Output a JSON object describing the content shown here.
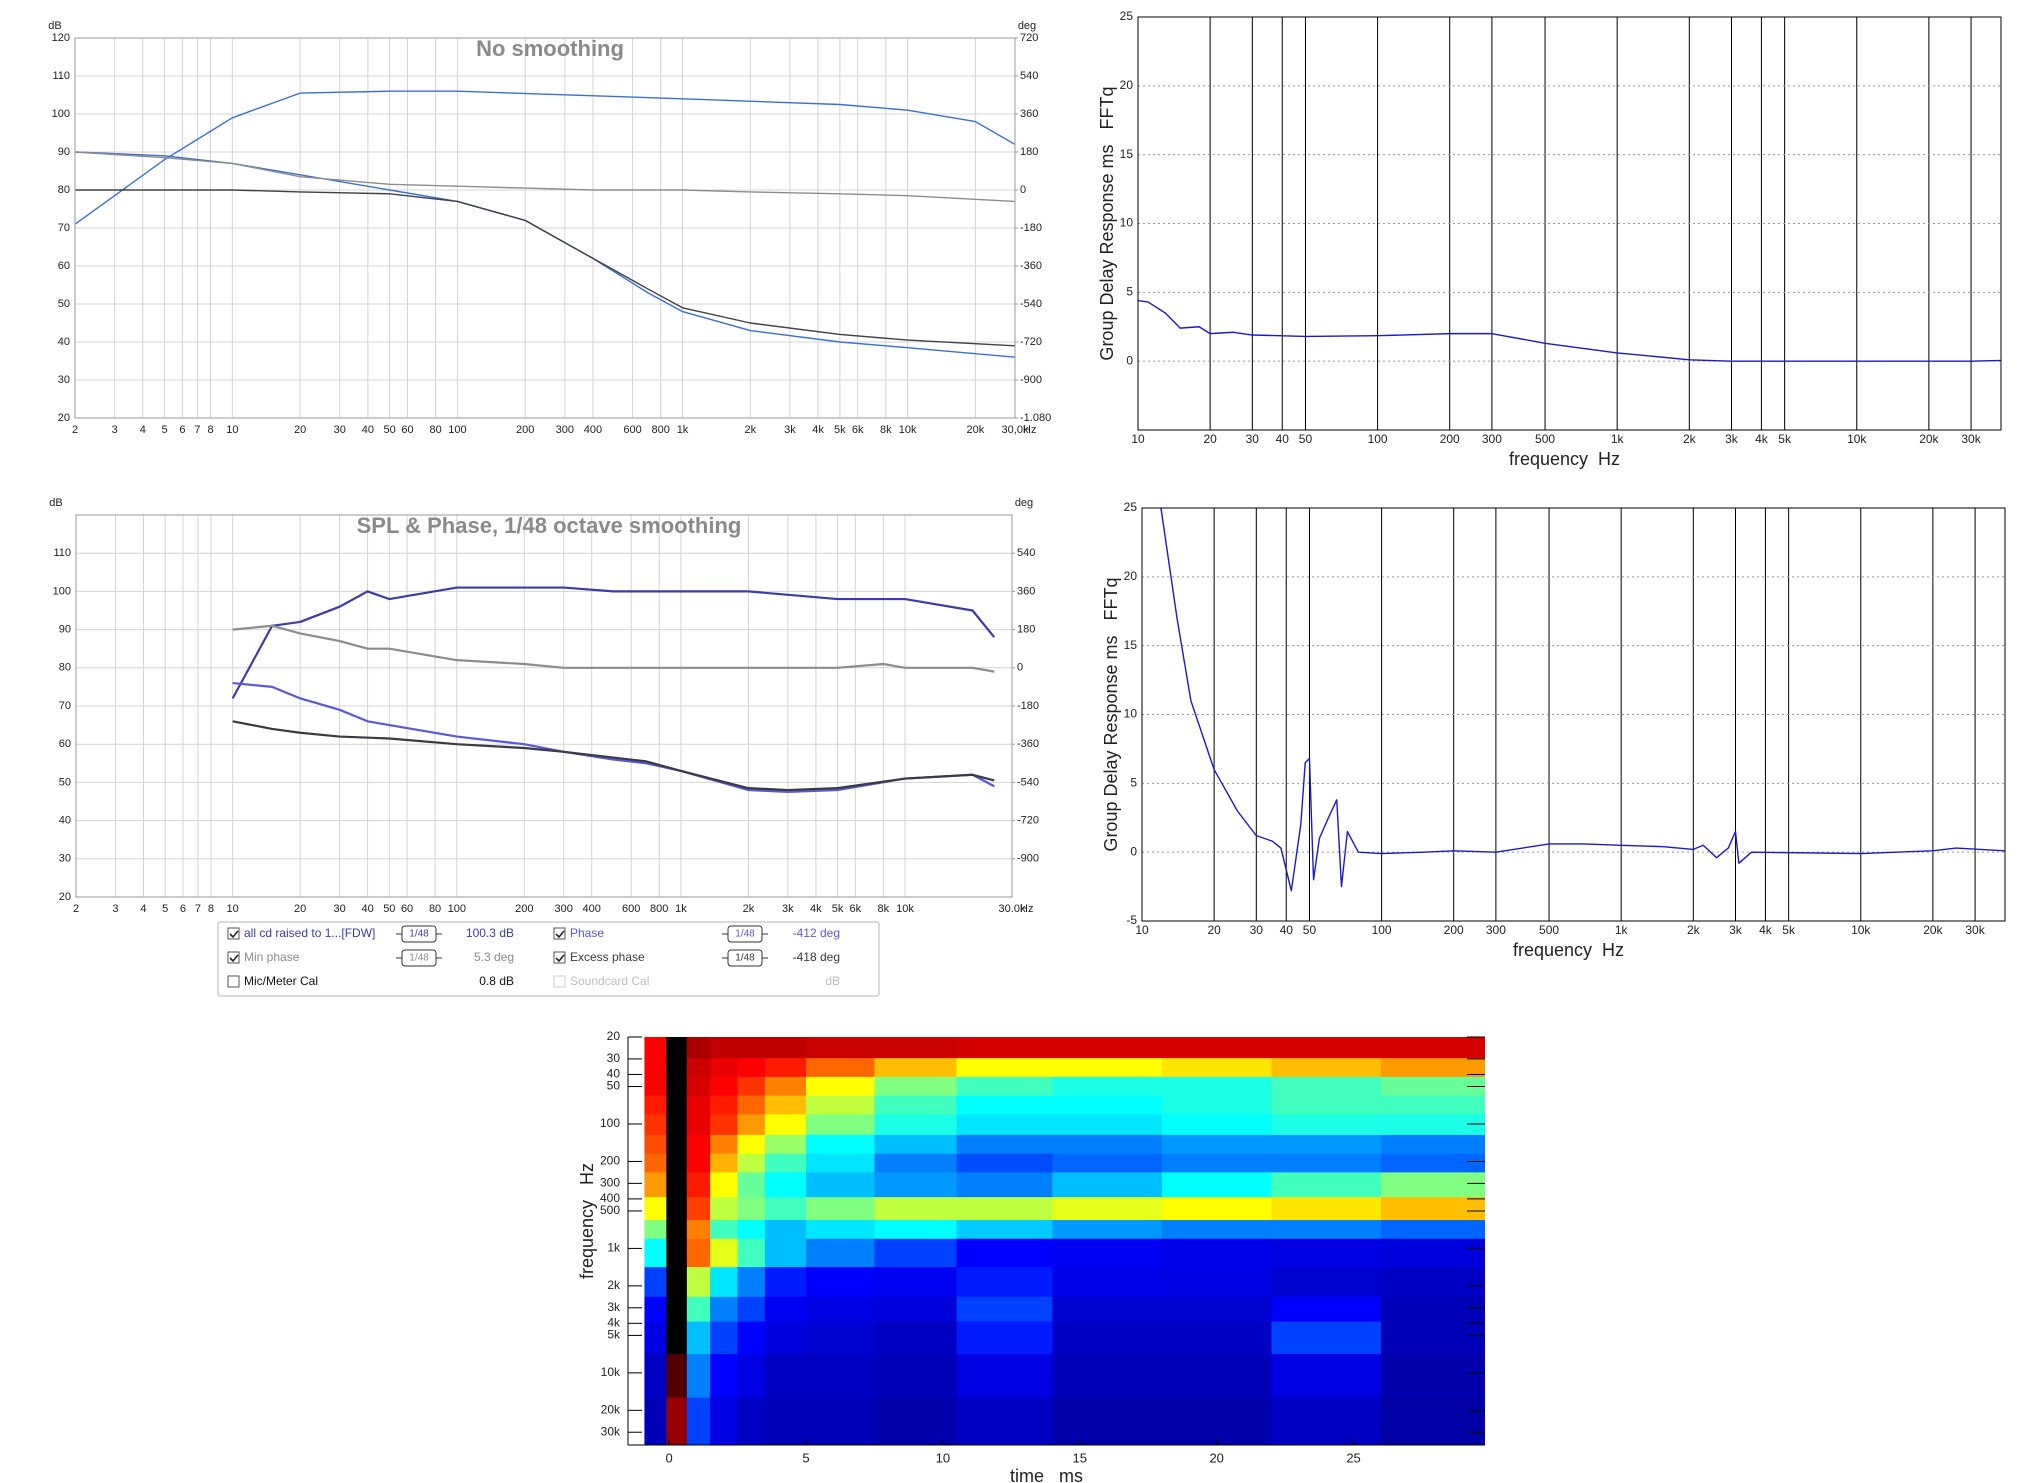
{
  "chart_data": [
    {
      "type": "line",
      "title": "No smoothing",
      "ylabel": "dB",
      "y2label": "deg",
      "x_unit": "Hz",
      "xscale": "log",
      "xlim": [
        2,
        30000
      ],
      "xticks": [
        2,
        3,
        4,
        5,
        6,
        7,
        8,
        10,
        20,
        30,
        40,
        50,
        60,
        80,
        100,
        200,
        300,
        400,
        600,
        800,
        {
          "value": 1000,
          "label": "1k"
        },
        {
          "value": 2000,
          "label": "2k"
        },
        {
          "value": 3000,
          "label": "3k"
        },
        {
          "value": 4000,
          "label": "4k"
        },
        {
          "value": 5000,
          "label": "5k"
        },
        {
          "value": 6000,
          "label": "6k"
        },
        {
          "value": 8000,
          "label": "8k"
        },
        {
          "value": 10000,
          "label": "10k"
        },
        {
          "value": 20000,
          "label": "20k"
        },
        {
          "value": 30000,
          "label": "30,0k"
        }
      ],
      "ylim": [
        20,
        120
      ],
      "yticks": [
        20,
        30,
        40,
        50,
        60,
        70,
        80,
        90,
        100,
        110,
        120
      ],
      "y2lim": [
        -1080,
        720
      ],
      "y2ticks": [
        720,
        540,
        360,
        180,
        0,
        -180,
        -360,
        -540,
        -720,
        -900,
        {
          "value": -1080,
          "label": "-1.080"
        }
      ],
      "grid": true,
      "grid_color": "#d4d4d4",
      "ygrid_color": "#d4d4d4",
      "ygrid_dotted": false,
      "series": [
        {
          "color": "#3a6fd8",
          "x": [
            2,
            5,
            10,
            20,
            50,
            100,
            1000,
            5000,
            10000,
            20000,
            30000
          ],
          "values": [
            71,
            88,
            99,
            105.5,
            106,
            106,
            104,
            102.5,
            101,
            98,
            92
          ]
        },
        {
          "color": "#3a6fd8",
          "axis": "y2",
          "x": [
            2,
            5,
            10,
            20,
            50,
            100,
            200,
            400,
            700,
            1000,
            2000,
            5000,
            10000,
            30000
          ],
          "values": [
            180,
            162,
            126,
            72,
            0,
            -54,
            -144,
            -324,
            -486,
            -576,
            -666,
            -720,
            -747,
            -792
          ]
        },
        {
          "color": "#404048",
          "axis": "y2",
          "x": [
            2,
            5,
            10,
            20,
            50,
            100,
            200,
            400,
            700,
            1000,
            2000,
            5000,
            10000,
            30000
          ],
          "values": [
            0,
            0,
            0,
            -9,
            -18,
            -54,
            -144,
            -324,
            -468,
            -558,
            -630,
            -684,
            -711,
            -738
          ]
        },
        {
          "color": "#8c8c8c",
          "axis": "y2",
          "x": [
            2,
            5,
            10,
            20,
            50,
            100,
            200,
            400,
            700,
            1000,
            2000,
            5000,
            10000,
            30000
          ],
          "values": [
            180,
            153,
            126,
            63,
            27,
            18,
            9,
            0,
            0,
            0,
            -9,
            -18,
            -27,
            -54
          ]
        }
      ]
    },
    {
      "type": "line",
      "title": "SPL & Phase, 1/48 octave smoothing",
      "ylabel": "dB",
      "y2label": "deg",
      "x_unit": "Hz",
      "xscale": "log",
      "xlim": [
        2,
        30000
      ],
      "xticks": [
        2,
        3,
        4,
        5,
        6,
        7,
        8,
        10,
        20,
        30,
        40,
        50,
        60,
        80,
        100,
        200,
        300,
        400,
        600,
        800,
        {
          "value": 1000,
          "label": "1k"
        },
        {
          "value": 2000,
          "label": "2k"
        },
        {
          "value": 3000,
          "label": "3k"
        },
        {
          "value": 4000,
          "label": "4k"
        },
        {
          "value": 5000,
          "label": "5k"
        },
        {
          "value": 6000,
          "label": "6k"
        },
        {
          "value": 8000,
          "label": "8k"
        },
        {
          "value": 10000,
          "label": "10k"
        },
        {
          "value": 30000,
          "label": "30.0k"
        }
      ],
      "ylim": [
        20,
        120
      ],
      "yticks": [
        20,
        30,
        40,
        50,
        60,
        70,
        80,
        90,
        100,
        110
      ],
      "y2lim": [
        -1080,
        720
      ],
      "y2ticks": [
        540,
        360,
        180,
        0,
        -180,
        -360,
        -540,
        -720,
        -900
      ],
      "grid": true,
      "grid_color": "#d4d4d4",
      "ygrid_color": "#d4d4d4",
      "ygrid_dotted": false,
      "series": [
        {
          "name": "all cd raised to 1...[FDW]",
          "color": "#3c3ca8",
          "smoothing": "1/48",
          "readout": "100.3 dB",
          "checked": true,
          "x": [
            10,
            15,
            20,
            30,
            40,
            50,
            100,
            200,
            300,
            500,
            1000,
            2000,
            5000,
            10000,
            20000,
            25000
          ],
          "values": [
            72,
            91,
            92,
            96,
            100,
            98,
            101,
            101,
            101,
            100,
            100,
            100,
            98,
            98,
            95,
            88
          ]
        },
        {
          "name": "Phase",
          "color": "#5858dc",
          "axis": "y2",
          "smoothing": "1/48",
          "readout": "-412 deg",
          "checked": true,
          "x": [
            10,
            15,
            20,
            30,
            40,
            50,
            100,
            200,
            300,
            500,
            700,
            1000,
            2000,
            3000,
            5000,
            10000,
            20000,
            25000
          ],
          "values": [
            -72,
            -90,
            -144,
            -198,
            -252,
            -270,
            -324,
            -360,
            -396,
            -432,
            -450,
            -486,
            -576,
            -585,
            -576,
            -522,
            -504,
            -558
          ]
        },
        {
          "name": "Min phase",
          "color": "#8c8c8c",
          "axis": "y2",
          "smoothing": "1/48",
          "readout": "5.3 deg",
          "checked": true,
          "x": [
            10,
            15,
            20,
            30,
            40,
            50,
            100,
            200,
            300,
            500,
            1000,
            2000,
            5000,
            8000,
            10000,
            20000,
            25000
          ],
          "values": [
            180,
            198,
            162,
            126,
            90,
            90,
            36,
            18,
            0,
            0,
            0,
            0,
            0,
            18,
            0,
            0,
            -18
          ]
        },
        {
          "name": "Excess phase",
          "color": "#3a3a42",
          "axis": "y2",
          "smoothing": "1/48",
          "readout": "-418 deg",
          "checked": true,
          "x": [
            10,
            15,
            20,
            30,
            50,
            100,
            200,
            300,
            500,
            700,
            1000,
            2000,
            3000,
            5000,
            10000,
            20000,
            25000
          ],
          "values": [
            -252,
            -288,
            -306,
            -324,
            -333,
            -360,
            -378,
            -396,
            -423,
            -441,
            -486,
            -567,
            -576,
            -567,
            -522,
            -504,
            -531
          ]
        }
      ],
      "legend_extra": [
        {
          "name": "Mic/Meter Cal",
          "readout": "0.8 dB",
          "checked": false,
          "disabled": false
        },
        {
          "name": "Soundcard Cal",
          "readout": "dB",
          "checked": false,
          "disabled": true
        }
      ]
    },
    {
      "type": "line",
      "ylabel": "Group Delay Response ms   FFTq",
      "xlabel": "frequency  Hz",
      "xscale": "log",
      "xlim": [
        10,
        40000
      ],
      "xticks": [
        10,
        20,
        30,
        40,
        50,
        100,
        200,
        300,
        500,
        {
          "value": 1000,
          "label": "1k"
        },
        {
          "value": 2000,
          "label": "2k"
        },
        {
          "value": 3000,
          "label": "3k"
        },
        {
          "value": 4000,
          "label": "4k"
        },
        {
          "value": 5000,
          "label": "5k"
        },
        {
          "value": 10000,
          "label": "10k"
        },
        {
          "value": 20000,
          "label": "20k"
        },
        {
          "value": 30000,
          "label": "30k"
        }
      ],
      "ylim": [
        -5,
        25
      ],
      "yticks": [
        0,
        5,
        10,
        15,
        20,
        25
      ],
      "grid": true,
      "grid_color": "#000000",
      "ygrid_color": "#999999",
      "ygrid_dotted": true,
      "series": [
        {
          "color": "#1a1acc",
          "x": [
            10,
            11,
            13,
            15,
            18,
            20,
            25,
            30,
            50,
            100,
            200,
            300,
            500,
            1000,
            2000,
            3000,
            10000,
            30000,
            40000
          ],
          "values": [
            4.4,
            4.3,
            3.5,
            2.4,
            2.5,
            2.0,
            2.1,
            1.9,
            1.8,
            1.85,
            2.0,
            2.0,
            1.3,
            0.6,
            0.1,
            0.0,
            0.0,
            0.0,
            0.05
          ]
        }
      ]
    },
    {
      "type": "line",
      "ylabel": "Group Delay Response ms   FFTq",
      "xlabel": "frequency  Hz",
      "xscale": "log",
      "xlim": [
        10,
        40000
      ],
      "xticks": [
        10,
        20,
        30,
        40,
        50,
        100,
        200,
        300,
        500,
        {
          "value": 1000,
          "label": "1k"
        },
        {
          "value": 2000,
          "label": "2k"
        },
        {
          "value": 3000,
          "label": "3k"
        },
        {
          "value": 4000,
          "label": "4k"
        },
        {
          "value": 5000,
          "label": "5k"
        },
        {
          "value": 10000,
          "label": "10k"
        },
        {
          "value": 20000,
          "label": "20k"
        },
        {
          "value": 30000,
          "label": "30k"
        }
      ],
      "ylim": [
        -5,
        25
      ],
      "yticks": [
        -5,
        0,
        5,
        10,
        15,
        20,
        25
      ],
      "grid": true,
      "grid_color": "#000000",
      "ygrid_color": "#999999",
      "ygrid_dotted": true,
      "series": [
        {
          "color": "#1a1acc",
          "x": [
            12,
            14,
            16,
            20,
            25,
            30,
            35,
            38,
            42,
            46,
            48,
            50,
            52,
            55,
            60,
            65,
            68,
            72,
            80,
            100,
            150,
            200,
            300,
            500,
            700,
            1000,
            1500,
            2000,
            2200,
            2500,
            2800,
            3000,
            3100,
            3500,
            10000,
            20000,
            25000,
            40000
          ],
          "values": [
            25,
            17,
            11,
            6,
            3,
            1.2,
            0.8,
            0.3,
            -2.8,
            2,
            6.5,
            6.8,
            -2,
            1,
            2.5,
            3.8,
            -2.5,
            1.5,
            0,
            -0.1,
            0,
            0.1,
            0,
            0.6,
            0.6,
            0.5,
            0.4,
            0.2,
            0.5,
            -0.4,
            0.3,
            1.5,
            -0.8,
            0,
            -0.1,
            0.1,
            0.3,
            0.1
          ]
        }
      ]
    },
    {
      "type": "heatmap",
      "xlabel": "time   ms",
      "ylabel": "frequency   Hz",
      "yscale": "log",
      "xlim": [
        -1.5,
        29.8
      ],
      "xticks": [
        0,
        5,
        10,
        15,
        20,
        25
      ],
      "ylim": [
        38000,
        20
      ],
      "yticks": [
        20,
        30,
        40,
        50,
        100,
        200,
        300,
        400,
        500,
        {
          "value": 1000,
          "label": "1k"
        },
        {
          "value": 2000,
          "label": "2k"
        },
        {
          "value": 3000,
          "label": "3k"
        },
        {
          "value": 4000,
          "label": "4k"
        },
        {
          "value": 5000,
          "label": "5k"
        },
        {
          "value": 10000,
          "label": "10k"
        },
        {
          "value": 20000,
          "label": "20k"
        },
        {
          "value": 30000,
          "label": "30k"
        }
      ],
      "colormap": [
        [
          0,
          "#00008a"
        ],
        [
          20,
          "#0000ff"
        ],
        [
          40,
          "#00ffff"
        ],
        [
          60,
          "#ffff00"
        ],
        [
          80,
          "#ff0000"
        ],
        [
          92,
          "#800000"
        ],
        [
          100,
          "#000000"
        ]
      ],
      "x": [
        -0.5,
        0.3,
        1,
        2,
        3,
        4,
        6,
        9,
        12,
        16,
        20,
        24,
        28
      ],
      "y": [
        25,
        35,
        50,
        70,
        100,
        150,
        200,
        300,
        500,
        700,
        1000,
        2000,
        3000,
        5000,
        10000,
        25000
      ],
      "z": [
        [
          80,
          100,
          88,
          86,
          86,
          86,
          85,
          85,
          84,
          84,
          84,
          84,
          84
        ],
        [
          80,
          100,
          85,
          82,
          80,
          78,
          72,
          65,
          60,
          60,
          62,
          65,
          68
        ],
        [
          80,
          100,
          84,
          80,
          76,
          70,
          60,
          50,
          45,
          42,
          42,
          45,
          48
        ],
        [
          78,
          100,
          82,
          78,
          72,
          65,
          55,
          45,
          40,
          40,
          42,
          45,
          45
        ],
        [
          76,
          100,
          82,
          76,
          68,
          60,
          50,
          42,
          38,
          38,
          40,
          42,
          42
        ],
        [
          74,
          100,
          80,
          70,
          60,
          52,
          40,
          35,
          30,
          30,
          32,
          32,
          30
        ],
        [
          72,
          100,
          80,
          66,
          55,
          45,
          38,
          30,
          26,
          28,
          30,
          30,
          28
        ],
        [
          68,
          100,
          78,
          60,
          48,
          40,
          35,
          32,
          30,
          35,
          40,
          45,
          50
        ],
        [
          60,
          100,
          75,
          55,
          50,
          45,
          50,
          55,
          55,
          58,
          60,
          62,
          65
        ],
        [
          50,
          100,
          70,
          45,
          40,
          35,
          38,
          40,
          36,
          32,
          30,
          30,
          28
        ],
        [
          40,
          100,
          72,
          58,
          45,
          35,
          30,
          25,
          20,
          18,
          16,
          15,
          14
        ],
        [
          25,
          100,
          55,
          38,
          30,
          22,
          20,
          18,
          22,
          16,
          15,
          12,
          10
        ],
        [
          20,
          100,
          45,
          30,
          25,
          18,
          15,
          14,
          25,
          12,
          12,
          20,
          8
        ],
        [
          15,
          100,
          35,
          25,
          20,
          14,
          12,
          10,
          22,
          10,
          10,
          25,
          8
        ],
        [
          10,
          95,
          30,
          20,
          15,
          10,
          10,
          8,
          15,
          8,
          8,
          15,
          6
        ],
        [
          8,
          90,
          25,
          15,
          10,
          8,
          8,
          6,
          10,
          6,
          6,
          10,
          5
        ]
      ]
    }
  ]
}
